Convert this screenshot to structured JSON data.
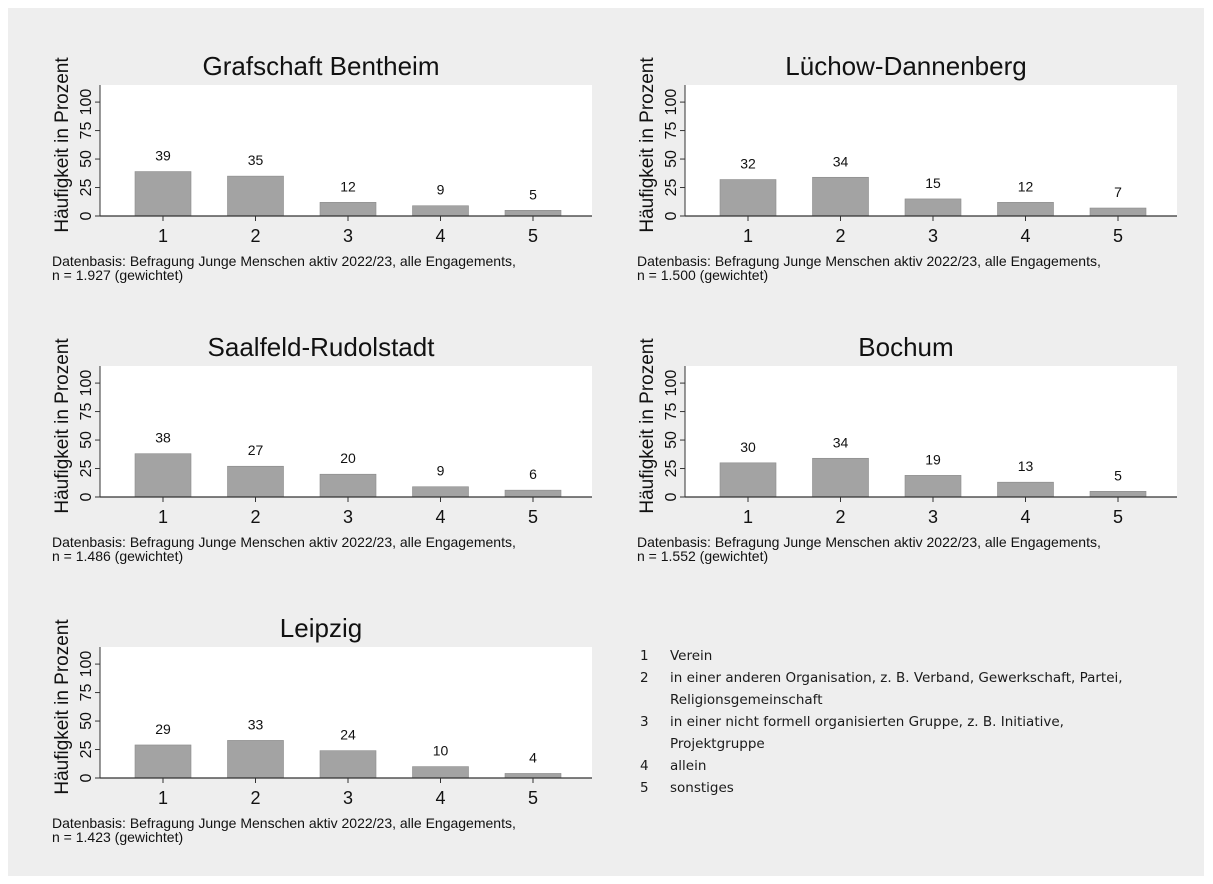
{
  "chart_data": [
    {
      "type": "bar",
      "title": "Grafschaft Bentheim",
      "ylabel": "Häufigkeit in Prozent",
      "categories": [
        "1",
        "2",
        "3",
        "4",
        "5"
      ],
      "values": [
        39,
        35,
        12,
        9,
        5
      ],
      "yticks": [
        "0",
        "25",
        "50",
        "75",
        "100"
      ],
      "ylim": [
        0,
        115
      ],
      "note_line1": "Datenbasis: Befragung Junge Menschen aktiv 2022/23, alle Engagements,",
      "note_line2": "n = 1.927 (gewichtet)"
    },
    {
      "type": "bar",
      "title": "Lüchow-Dannenberg",
      "ylabel": "Häufigkeit in Prozent",
      "categories": [
        "1",
        "2",
        "3",
        "4",
        "5"
      ],
      "values": [
        32,
        34,
        15,
        12,
        7
      ],
      "yticks": [
        "0",
        "25",
        "50",
        "75",
        "100"
      ],
      "ylim": [
        0,
        115
      ],
      "note_line1": "Datenbasis: Befragung Junge Menschen aktiv 2022/23, alle Engagements,",
      "note_line2": "n = 1.500 (gewichtet)"
    },
    {
      "type": "bar",
      "title": "Saalfeld-Rudolstadt",
      "ylabel": "Häufigkeit in Prozent",
      "categories": [
        "1",
        "2",
        "3",
        "4",
        "5"
      ],
      "values": [
        38,
        27,
        20,
        9,
        6
      ],
      "yticks": [
        "0",
        "25",
        "50",
        "75",
        "100"
      ],
      "ylim": [
        0,
        115
      ],
      "note_line1": "Datenbasis: Befragung Junge Menschen aktiv 2022/23, alle Engagements,",
      "note_line2": "n = 1.486 (gewichtet)"
    },
    {
      "type": "bar",
      "title": "Bochum",
      "ylabel": "Häufigkeit in Prozent",
      "categories": [
        "1",
        "2",
        "3",
        "4",
        "5"
      ],
      "values": [
        30,
        34,
        19,
        13,
        5
      ],
      "yticks": [
        "0",
        "25",
        "50",
        "75",
        "100"
      ],
      "ylim": [
        0,
        115
      ],
      "note_line1": "Datenbasis: Befragung Junge Menschen aktiv 2022/23, alle Engagements,",
      "note_line2": "n = 1.552 (gewichtet)"
    },
    {
      "type": "bar",
      "title": "Leipzig",
      "ylabel": "Häufigkeit in Prozent",
      "categories": [
        "1",
        "2",
        "3",
        "4",
        "5"
      ],
      "values": [
        29,
        33,
        24,
        10,
        4
      ],
      "yticks": [
        "0",
        "25",
        "50",
        "75",
        "100"
      ],
      "ylim": [
        0,
        115
      ],
      "note_line1": "Datenbasis: Befragung Junge Menschen aktiv 2022/23, alle Engagements,",
      "note_line2": "n = 1.423 (gewichtet)"
    }
  ],
  "colors": {
    "bar": "#a3a3a3",
    "axis": "#333333",
    "background": "#eeeeee",
    "plot": "#ffffff"
  },
  "legend": [
    {
      "num": "1",
      "line1": "Verein",
      "line2": ""
    },
    {
      "num": "2",
      "line1": "in einer anderen Organisation, z. B. Verband, Gewerkschaft, Partei,",
      "line2": "Religionsgemeinschaft"
    },
    {
      "num": "3",
      "line1": "in einer nicht formell organisierten Gruppe, z. B. Initiative,",
      "line2": "Projektgruppe"
    },
    {
      "num": "4",
      "line1": "allein",
      "line2": ""
    },
    {
      "num": "5",
      "line1": "sonstiges",
      "line2": ""
    }
  ]
}
